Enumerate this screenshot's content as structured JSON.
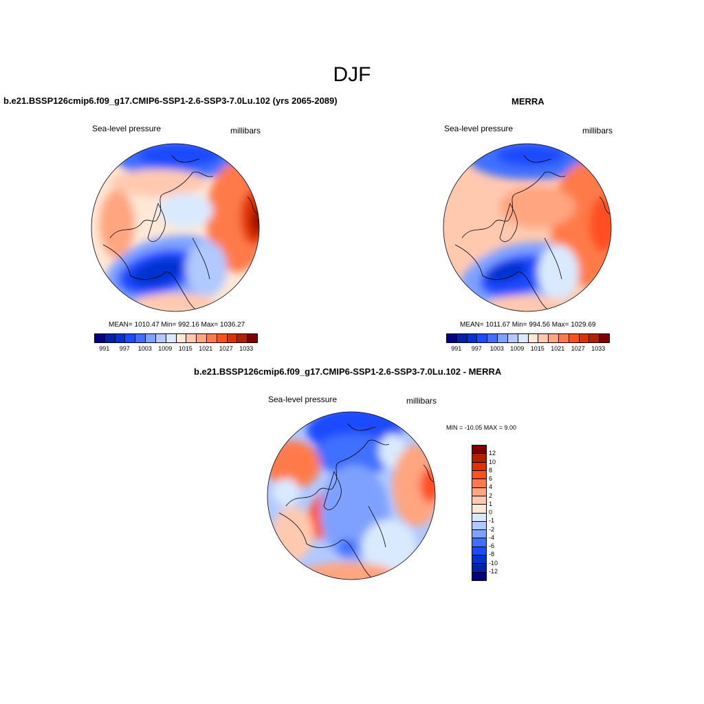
{
  "title": "DJF",
  "panels": [
    {
      "title": "b.e21.BSSP126cmip6.f09_g17.CMIP6-SSP1-2.6-SSP3-7.0Lu.102 (yrs 2065-2089)",
      "left_label": "Sea-level pressure",
      "right_label": "millibars",
      "stats": "MEAN= 1010.47  Min= 992.16  Max= 1036.27"
    },
    {
      "title": "MERRA",
      "left_label": "Sea-level pressure",
      "right_label": "millibars",
      "stats": "MEAN= 1011.67  Min= 994.56  Max= 1029.69"
    },
    {
      "title": "b.e21.BSSP126cmip6.f09_g17.CMIP6-SSP1-2.6-SSP3-7.0Lu.102 - MERRA",
      "left_label": "Sea-level pressure",
      "right_label": "millibars",
      "stats": "MIN = -10.05 MAX =   9.00"
    }
  ],
  "abs_colorbar": {
    "labels": [
      "991",
      "997",
      "1003",
      "1009",
      "1015",
      "1021",
      "1027",
      "1033"
    ],
    "colors": [
      "#000080",
      "#0022a8",
      "#0033d0",
      "#1a4cff",
      "#3f6fff",
      "#7ea1ff",
      "#b0c9ff",
      "#d9eaff",
      "#ffe8d6",
      "#ffc9b0",
      "#ffa580",
      "#ff7a4a",
      "#ff5020",
      "#e03000",
      "#b32000",
      "#7f0000"
    ]
  },
  "diff_colorbar": {
    "labels": [
      "12",
      "10",
      "8",
      "6",
      "4",
      "2",
      "1",
      "0",
      "-1",
      "-2",
      "-4",
      "-6",
      "-8",
      "-10",
      "-12"
    ],
    "colors": [
      "#7f0000",
      "#b32000",
      "#e03000",
      "#ff5020",
      "#ff7a4a",
      "#ffa580",
      "#ffc9b0",
      "#ffe8d6",
      "#d9eaff",
      "#b0c9ff",
      "#7ea1ff",
      "#3f6fff",
      "#1a4cff",
      "#0033d0",
      "#0022a8",
      "#000080"
    ]
  }
}
